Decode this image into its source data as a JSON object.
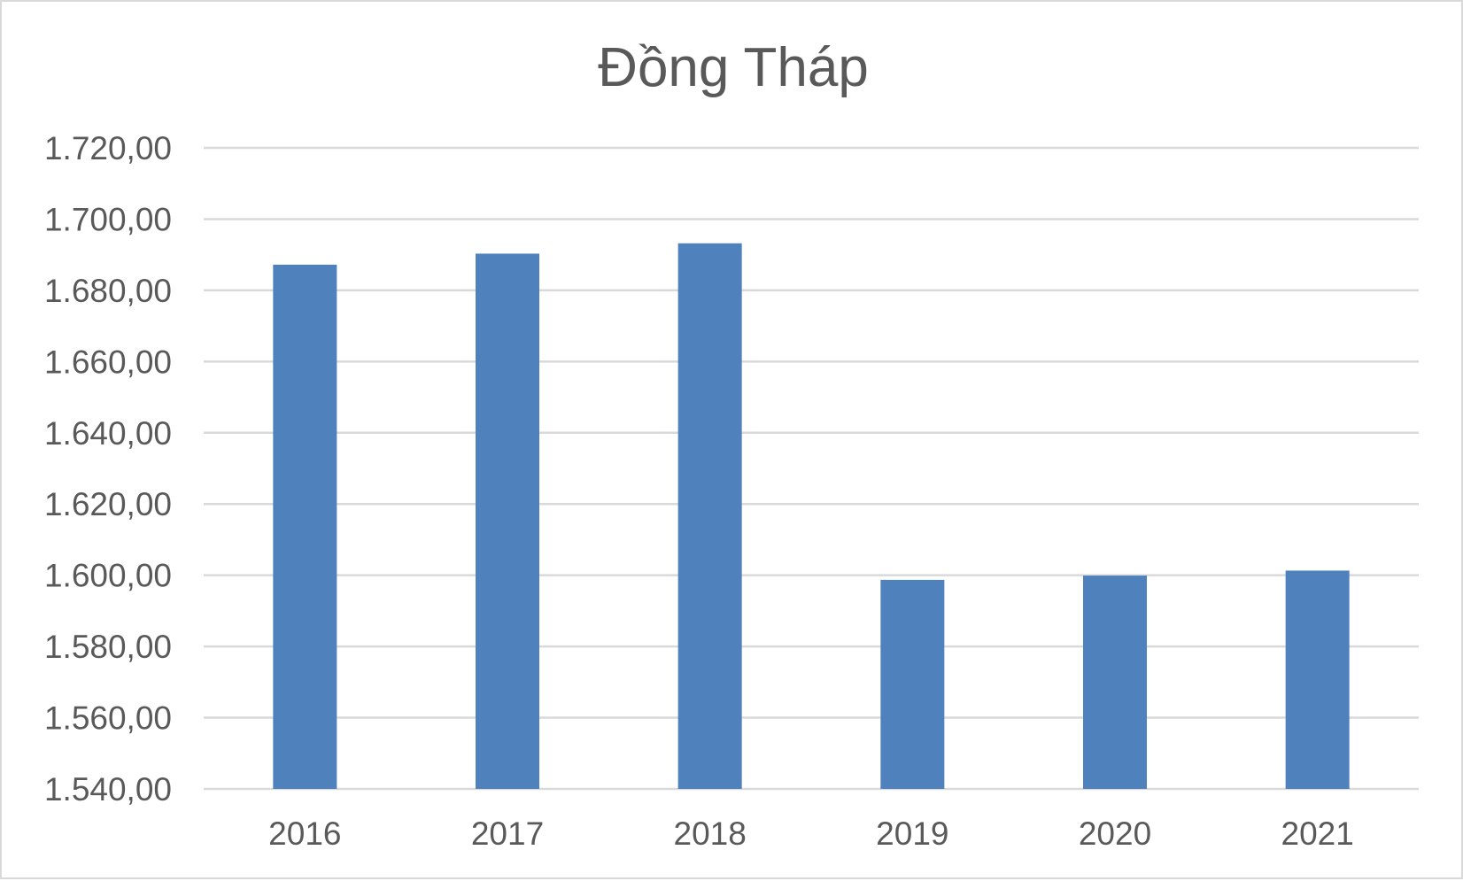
{
  "chart_data": {
    "type": "bar",
    "title": "Đồng Tháp",
    "xlabel": "",
    "ylabel": "",
    "categories": [
      "2016",
      "2017",
      "2018",
      "2019",
      "2020",
      "2021"
    ],
    "values": [
      1687.2,
      1690.3,
      1693.2,
      1598.7,
      1599.9,
      1601.3
    ],
    "ylim": [
      1540,
      1720
    ],
    "ytick_step": 20,
    "y_tick_labels": [
      "1.540,00",
      "1.560,00",
      "1.580,00",
      "1.600,00",
      "1.620,00",
      "1.640,00",
      "1.660,00",
      "1.680,00",
      "1.700,00",
      "1.720,00"
    ],
    "grid": true,
    "legend": "none",
    "bar_color": "#4f81bd"
  }
}
